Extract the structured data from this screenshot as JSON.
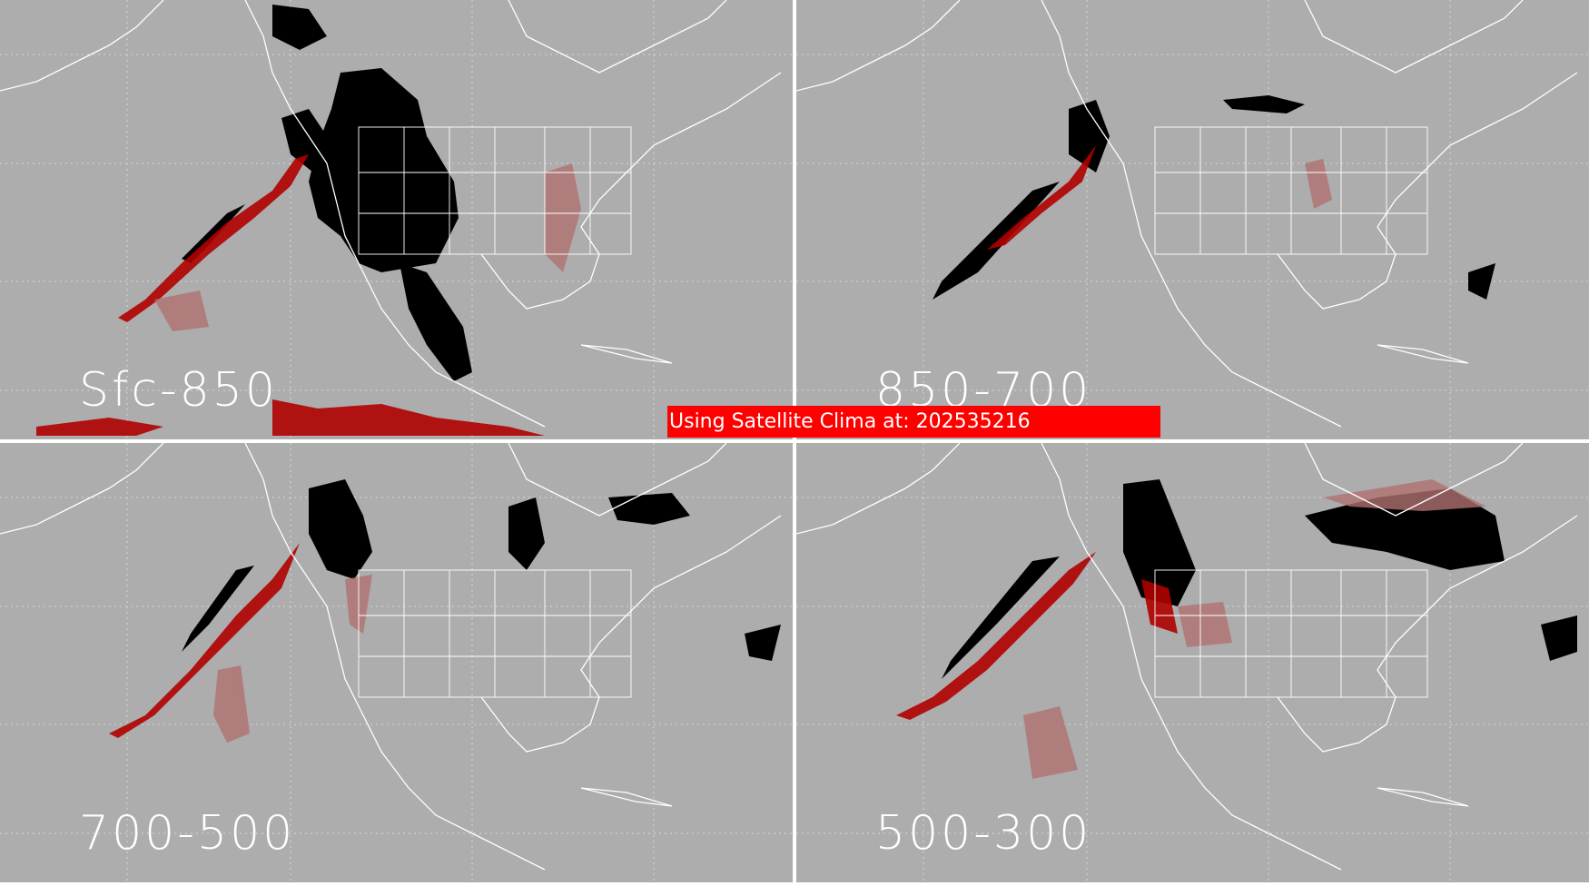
{
  "banner": {
    "text": "Using Satellite Clima at: 202535216"
  },
  "panels": [
    {
      "id": "tl",
      "label": "Sfc-850"
    },
    {
      "id": "tr",
      "label": "850-700"
    },
    {
      "id": "bl",
      "label": "700-500"
    },
    {
      "id": "br",
      "label": "500-300"
    }
  ],
  "colors": {
    "background": "#adadad",
    "coastline": "#ffffff",
    "dark_field": "#000000",
    "red_field": "#b00000",
    "faint_field": "#b07070",
    "banner": "#ff0000",
    "divider": "#ffffff"
  }
}
